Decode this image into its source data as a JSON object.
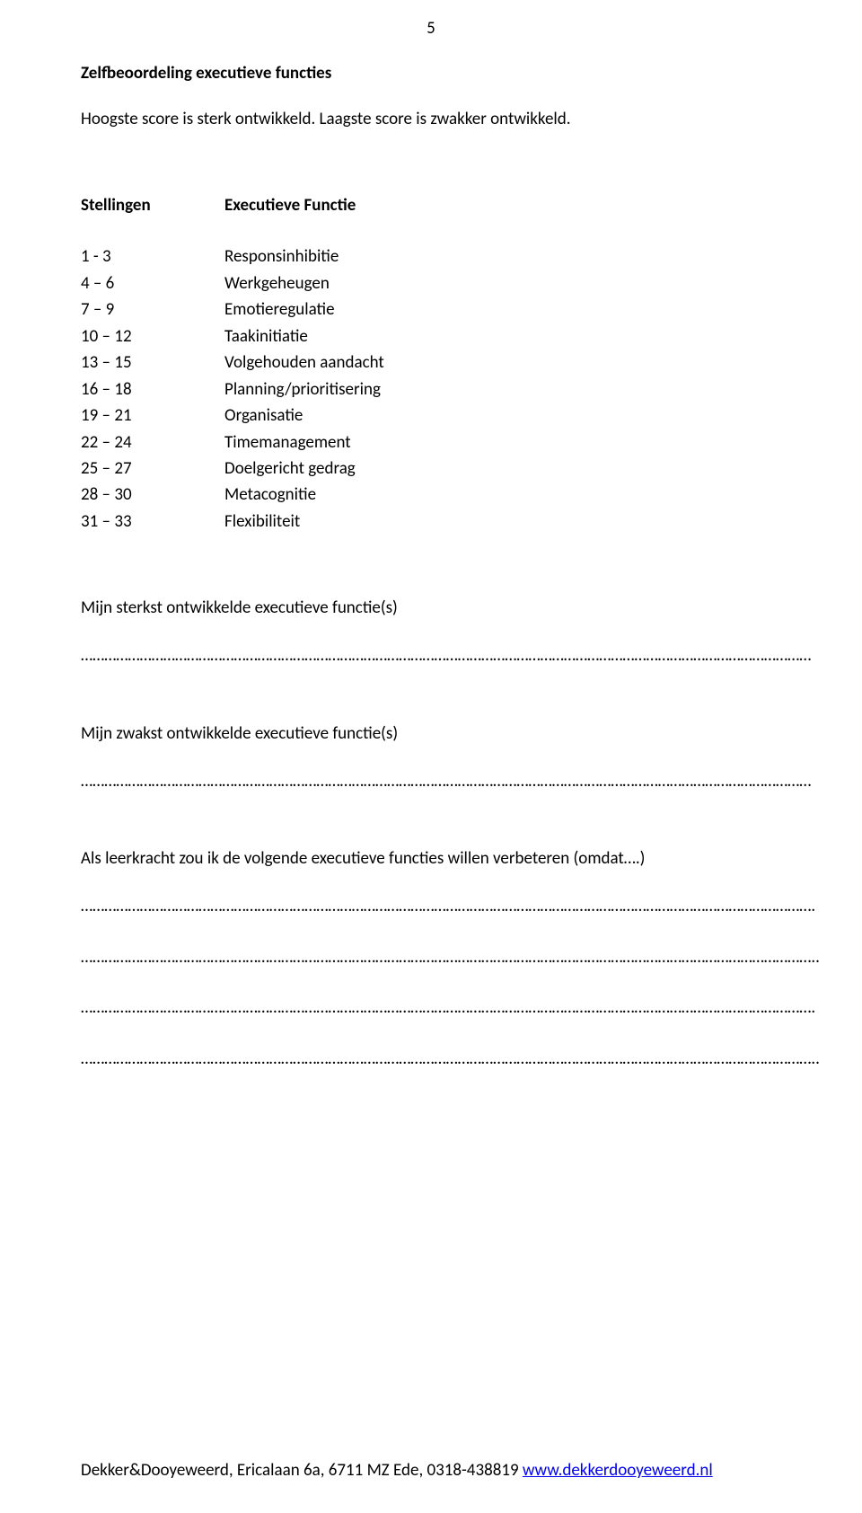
{
  "page_number": "5",
  "title": "Zelfbeoordeling executieve functies",
  "subtitle": "Hoogste score is sterk ontwikkeld. Laagste score is zwakker ontwikkeld.",
  "table": {
    "header": {
      "col1": "Stellingen",
      "col2": "Executieve Functie"
    },
    "rows": [
      {
        "range": "1 -  3",
        "label": "Responsinhibitie"
      },
      {
        "range": "4 – 6",
        "label": "Werkgeheugen"
      },
      {
        "range": "7 – 9",
        "label": "Emotieregulatie"
      },
      {
        "range": "10 – 12",
        "label": "Taakinitiatie"
      },
      {
        "range": "13 – 15",
        "label": "Volgehouden aandacht"
      },
      {
        "range": "16 – 18",
        "label": "Planning/prioritisering"
      },
      {
        "range": "19 – 21",
        "label": "Organisatie"
      },
      {
        "range": "22 – 24",
        "label": "Timemanagement"
      },
      {
        "range": "25 – 27",
        "label": "Doelgericht gedrag"
      },
      {
        "range": "28 – 30",
        "label": "Metacognitie"
      },
      {
        "range": "31 – 33",
        "label": "Flexibiliteit"
      }
    ]
  },
  "prompts": {
    "strongest": "Mijn sterkst ontwikkelde executieve functie(s)",
    "weakest": "Mijn zwakst ontwikkelde executieve functie(s)",
    "improve": "Als leerkracht zou ik de volgende executieve functies willen verbeteren (omdat….)"
  },
  "fill_lines": {
    "single": "……………………………………………………………………………………………………………………………………………………………………",
    "multi": [
      "…………………………………………………………………………………………………………………………………………………………………….",
      "……………………………………………………………………………………………………………………………………………………………………..",
      "…………………………………………………………………………………………………………………………………………………………………….",
      "…………………………………………………………………………………………………………………………………………………………………….."
    ]
  },
  "footer": {
    "text": "Dekker&Dooyeweerd, Ericalaan 6a, 6711 MZ Ede, 0318-438819   ",
    "link_text": "www.dekkerdooyeweerd.nl"
  }
}
